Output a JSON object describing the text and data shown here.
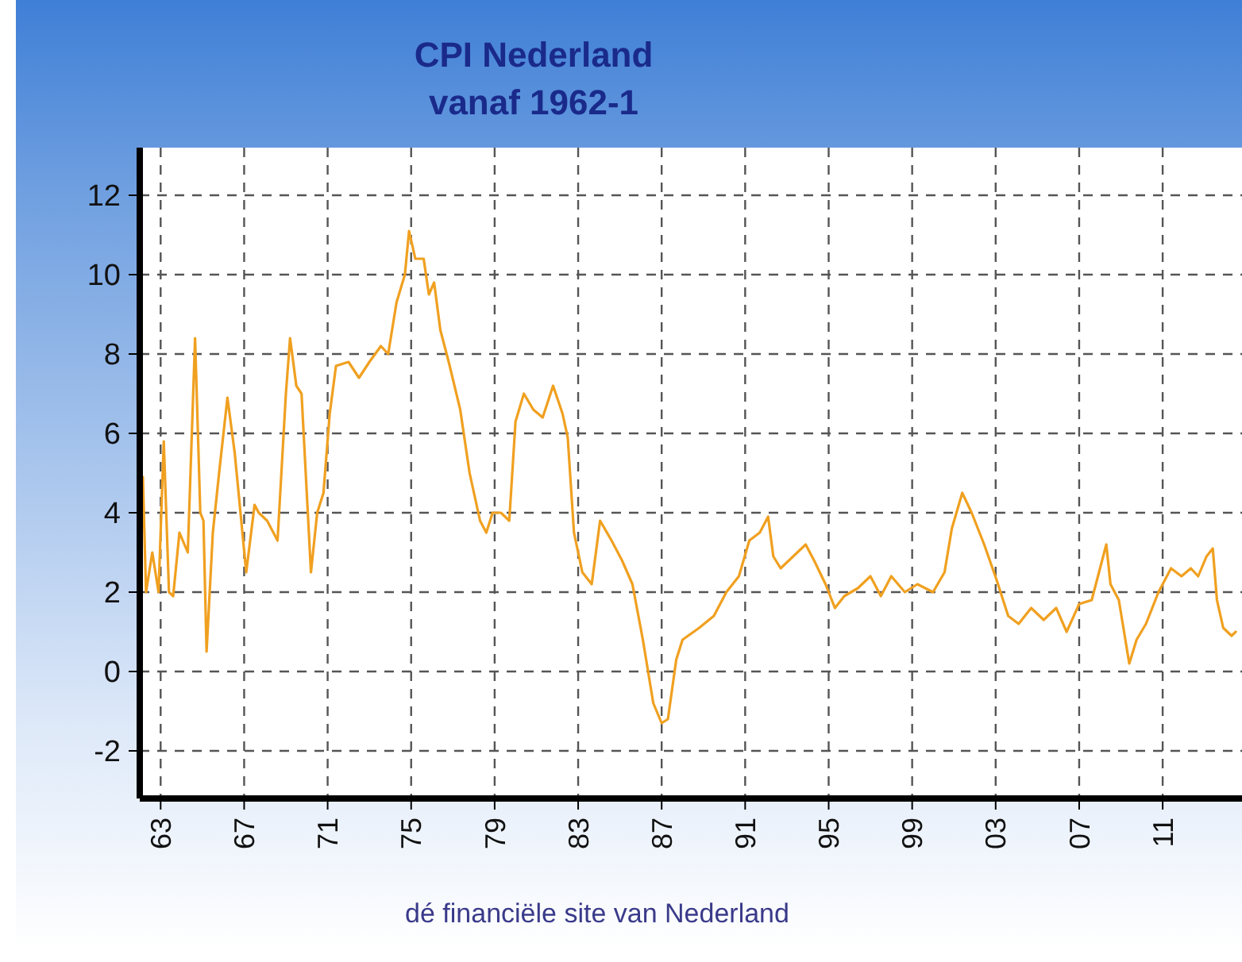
{
  "chart_data": {
    "type": "line",
    "title": "CPI Nederland",
    "subtitle": "vanaf 1962-1",
    "x": [
      1962.15,
      1962.3,
      1962.6,
      1962.9,
      1963.15,
      1963.4,
      1963.6,
      1963.9,
      1964.3,
      1964.65,
      1964.9,
      1965.05,
      1965.2,
      1965.5,
      1965.8,
      1966.2,
      1966.55,
      1967.1,
      1967.5,
      1967.7,
      1968.1,
      1968.6,
      1969.0,
      1969.2,
      1969.5,
      1969.75,
      1970.05,
      1970.2,
      1970.5,
      1970.8,
      1971.1,
      1971.4,
      1972.0,
      1972.5,
      1973.0,
      1973.55,
      1973.9,
      1974.3,
      1974.7,
      1974.9,
      1975.2,
      1975.6,
      1975.85,
      1976.1,
      1976.4,
      1976.8,
      1977.35,
      1977.8,
      1978.3,
      1978.6,
      1978.9,
      1979.3,
      1979.7,
      1980.0,
      1980.4,
      1980.85,
      1981.3,
      1981.8,
      1982.25,
      1982.5,
      1982.8,
      1983.2,
      1983.65,
      1984.05,
      1984.6,
      1985.1,
      1985.6,
      1986.1,
      1986.6,
      1987.0,
      1987.3,
      1987.7,
      1988.0,
      1988.8,
      1989.5,
      1990.1,
      1990.7,
      1991.2,
      1991.7,
      1992.1,
      1992.35,
      1992.7,
      1993.3,
      1993.9,
      1994.3,
      1994.85,
      1995.3,
      1995.75,
      1996.4,
      1997.0,
      1997.5,
      1998.0,
      1998.65,
      1999.25,
      2000.0,
      2000.55,
      2000.9,
      2001.4,
      2001.85,
      2002.45,
      2003.05,
      2003.6,
      2004.1,
      2004.7,
      2005.3,
      2005.9,
      2006.4,
      2007.0,
      2007.6,
      2008.0,
      2008.3,
      2008.5,
      2008.9,
      2009.4,
      2009.75,
      2010.2,
      2010.8,
      2011.4,
      2011.9,
      2012.35,
      2012.7,
      2013.1,
      2013.4,
      2013.6,
      2013.9,
      2014.3,
      2014.5
    ],
    "series": [
      {
        "color": "#f0a020",
        "values": [
          4.9,
          2,
          3,
          2,
          5.8,
          2,
          1.9,
          3.5,
          3,
          8.4,
          4,
          3.8,
          0.5,
          3.5,
          5,
          6.9,
          5.5,
          2.5,
          4.2,
          4,
          3.8,
          3.3,
          7,
          8.4,
          7.2,
          7,
          4,
          2.5,
          4,
          4.5,
          6.5,
          7.7,
          7.8,
          7.4,
          7.8,
          8.2,
          8,
          9.3,
          10,
          11.1,
          10.4,
          10.4,
          9.5,
          9.8,
          8.6,
          7.8,
          6.6,
          5,
          3.8,
          3.5,
          4,
          4,
          3.8,
          6.3,
          7,
          6.6,
          6.4,
          7.2,
          6.5,
          5.9,
          3.5,
          2.5,
          2.2,
          3.8,
          3.3,
          2.8,
          2.2,
          0.8,
          -0.8,
          -1.3,
          -1.2,
          0.3,
          0.8,
          1.1,
          1.4,
          2,
          2.4,
          3.3,
          3.5,
          3.9,
          2.9,
          2.6,
          2.9,
          3.2,
          2.8,
          2.2,
          1.6,
          1.9,
          2.1,
          2.4,
          1.9,
          2.4,
          2,
          2.2,
          2,
          2.5,
          3.6,
          4.5,
          4,
          3.2,
          2.3,
          1.4,
          1.2,
          1.6,
          1.3,
          1.6,
          1,
          1.7,
          1.8,
          2.6,
          3.2,
          2.2,
          1.8,
          0.2,
          0.8,
          1.2,
          2,
          2.6,
          2.4,
          2.6,
          2.4,
          2.9,
          3.1,
          1.8,
          1.1,
          0.9,
          1
        ]
      }
    ],
    "xlim": [
      1962,
      2014.8
    ],
    "xticks": [
      {
        "value": 1963,
        "label": "63"
      },
      {
        "value": 1967,
        "label": "67"
      },
      {
        "value": 1971,
        "label": "71"
      },
      {
        "value": 1975,
        "label": "75"
      },
      {
        "value": 1979,
        "label": "79"
      },
      {
        "value": 1983,
        "label": "83"
      },
      {
        "value": 1987,
        "label": "87"
      },
      {
        "value": 1991,
        "label": "91"
      },
      {
        "value": 1995,
        "label": "95"
      },
      {
        "value": 1999,
        "label": "99"
      },
      {
        "value": 2003,
        "label": "03"
      },
      {
        "value": 2007,
        "label": "07"
      },
      {
        "value": 2011,
        "label": "11"
      }
    ],
    "ylim": [
      -3.2,
      13.2
    ],
    "yticks": [
      -2,
      0,
      2,
      4,
      6,
      8,
      10,
      12
    ],
    "grid": true,
    "line_style": "solid",
    "marker": "none",
    "annotations": [
      "dé financiële site van Nederland"
    ]
  }
}
